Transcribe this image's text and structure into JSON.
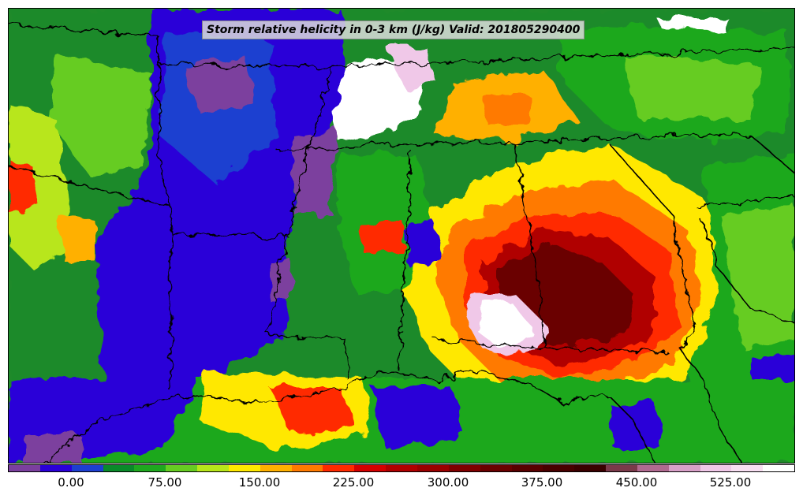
{
  "title": "Storm relative helicity in 0-3 km (J/kg) Valid: 201805290400",
  "colorbar": {
    "colors": [
      "#7b3f9e",
      "#2a00d8",
      "#1d3fd0",
      "#0a8a2a",
      "#1fa81f",
      "#66cc22",
      "#b8e61a",
      "#ffe800",
      "#ffb000",
      "#ff7a00",
      "#ff2a00",
      "#d40000",
      "#b00000",
      "#9a0000",
      "#800000",
      "#6a0000",
      "#580000",
      "#480000",
      "#3a0000",
      "#7a3a4a",
      "#b06a90",
      "#d8a0c8",
      "#f0c8e8",
      "#f8dff2",
      "#ffffff"
    ],
    "tick_labels": [
      "0.00",
      "75.00",
      "150.00",
      "225.00",
      "300.00",
      "375.00",
      "450.00",
      "525.00"
    ]
  }
}
